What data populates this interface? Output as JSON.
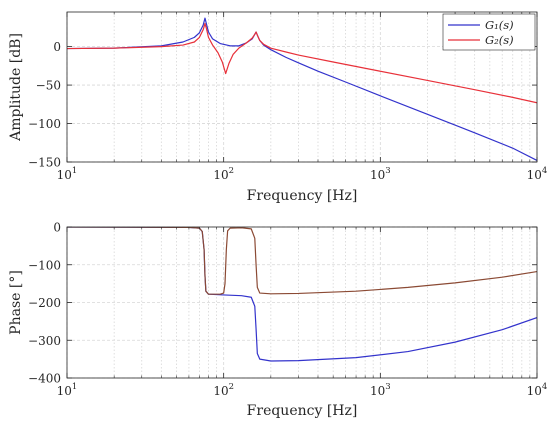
{
  "colors": {
    "g1": "#3333cc",
    "g2": "#e8313a",
    "overlap": "#8b4a34",
    "grid": "#d7d7d7",
    "axis": "#262626"
  },
  "legend": {
    "placement": "top-right",
    "entries": [
      {
        "series": "g1",
        "text": "G₁(s)"
      },
      {
        "series": "g2",
        "text": "G₂(s)"
      }
    ]
  },
  "chart_data": [
    {
      "type": "line",
      "xscale": "log",
      "xlim": [
        10,
        10000
      ],
      "ylim": [
        -150,
        45
      ],
      "grid": true,
      "xlabel": "Frequency [Hz]",
      "ylabel": "Amplitude [dB]",
      "xticks": [
        {
          "value": 10,
          "label_base": "10",
          "label_exp": "1"
        },
        {
          "value": 100,
          "label_base": "10",
          "label_exp": "2"
        },
        {
          "value": 1000,
          "label_base": "10",
          "label_exp": "3"
        },
        {
          "value": 10000,
          "label_base": "10",
          "label_exp": "4"
        }
      ],
      "yticks": [
        {
          "value": 0,
          "label": "0"
        },
        {
          "value": -50,
          "label": "−50"
        },
        {
          "value": -100,
          "label": "−100"
        },
        {
          "value": -150,
          "label": "−150"
        }
      ],
      "series": [
        {
          "key": "g1",
          "name": "G₁(s)",
          "points": [
            [
              10,
              -2.5
            ],
            [
              20,
              -2
            ],
            [
              40,
              1
            ],
            [
              55,
              6
            ],
            [
              65,
              12
            ],
            [
              70,
              18
            ],
            [
              74,
              28
            ],
            [
              76,
              37
            ],
            [
              77.5,
              30
            ],
            [
              80,
              19
            ],
            [
              85,
              10
            ],
            [
              95,
              4
            ],
            [
              110,
              1
            ],
            [
              125,
              1
            ],
            [
              140,
              5
            ],
            [
              152,
              10
            ],
            [
              158,
              16
            ],
            [
              161,
              19
            ],
            [
              164,
              15
            ],
            [
              170,
              8
            ],
            [
              180,
              2
            ],
            [
              200,
              -4
            ],
            [
              250,
              -14
            ],
            [
              300,
              -21
            ],
            [
              400,
              -32
            ],
            [
              600,
              -46
            ],
            [
              1000,
              -64
            ],
            [
              2000,
              -88
            ],
            [
              4000,
              -112
            ],
            [
              7000,
              -132
            ],
            [
              10000,
              -148
            ]
          ]
        },
        {
          "key": "g2",
          "name": "G₂(s)",
          "points": [
            [
              10,
              -2.5
            ],
            [
              20,
              -2
            ],
            [
              40,
              0
            ],
            [
              55,
              2
            ],
            [
              65,
              6
            ],
            [
              70,
              12
            ],
            [
              74,
              22
            ],
            [
              76,
              30
            ],
            [
              77.5,
              24
            ],
            [
              80,
              12
            ],
            [
              85,
              2
            ],
            [
              92,
              -8
            ],
            [
              98,
              -20
            ],
            [
              103,
              -35
            ],
            [
              108,
              -22
            ],
            [
              115,
              -10
            ],
            [
              125,
              -2
            ],
            [
              140,
              5
            ],
            [
              152,
              11
            ],
            [
              158,
              16
            ],
            [
              161,
              19
            ],
            [
              164,
              15
            ],
            [
              170,
              8
            ],
            [
              180,
              3
            ],
            [
              200,
              -2
            ],
            [
              250,
              -7
            ],
            [
              300,
              -11
            ],
            [
              500,
              -20
            ],
            [
              1000,
              -32
            ],
            [
              2000,
              -44
            ],
            [
              4000,
              -56
            ],
            [
              7000,
              -66
            ],
            [
              10000,
              -73
            ]
          ]
        }
      ]
    },
    {
      "type": "line",
      "xscale": "log",
      "xlim": [
        10,
        10000
      ],
      "ylim": [
        -400,
        0
      ],
      "grid": true,
      "xlabel": "Frequency [Hz]",
      "ylabel": "Phase [°]",
      "xticks": [
        {
          "value": 10,
          "label_base": "10",
          "label_exp": "1"
        },
        {
          "value": 100,
          "label_base": "10",
          "label_exp": "2"
        },
        {
          "value": 1000,
          "label_base": "10",
          "label_exp": "3"
        },
        {
          "value": 10000,
          "label_base": "10",
          "label_exp": "4"
        }
      ],
      "yticks": [
        {
          "value": 0,
          "label": "0"
        },
        {
          "value": -100,
          "label": "−100"
        },
        {
          "value": -200,
          "label": "−200"
        },
        {
          "value": -300,
          "label": "−300"
        },
        {
          "value": -400,
          "label": "−400"
        }
      ],
      "series": [
        {
          "key": "g1",
          "name": "G₁(s)",
          "points": [
            [
              10,
              0
            ],
            [
              60,
              -1
            ],
            [
              70,
              -3
            ],
            [
              73,
              -12
            ],
            [
              75,
              -60
            ],
            [
              76,
              -130
            ],
            [
              77,
              -170
            ],
            [
              80,
              -178
            ],
            [
              100,
              -180
            ],
            [
              130,
              -182
            ],
            [
              150,
              -186
            ],
            [
              158,
              -210
            ],
            [
              161,
              -270
            ],
            [
              164,
              -335
            ],
            [
              170,
              -350
            ],
            [
              200,
              -355
            ],
            [
              300,
              -354
            ],
            [
              700,
              -346
            ],
            [
              1500,
              -330
            ],
            [
              3000,
              -305
            ],
            [
              6000,
              -272
            ],
            [
              10000,
              -240
            ]
          ]
        },
        {
          "key": "g2",
          "name": "G₂(s)",
          "color_key": "overlap",
          "points": [
            [
              10,
              0
            ],
            [
              60,
              -1
            ],
            [
              70,
              -3
            ],
            [
              73,
              -12
            ],
            [
              75,
              -60
            ],
            [
              76,
              -130
            ],
            [
              77,
              -170
            ],
            [
              80,
              -178
            ],
            [
              95,
              -178
            ],
            [
              100,
              -175
            ],
            [
              102,
              -150
            ],
            [
              104,
              -60
            ],
            [
              106,
              -10
            ],
            [
              110,
              -3
            ],
            [
              130,
              -2
            ],
            [
              150,
              -5
            ],
            [
              158,
              -30
            ],
            [
              161,
              -100
            ],
            [
              164,
              -160
            ],
            [
              170,
              -175
            ],
            [
              200,
              -177
            ],
            [
              300,
              -176
            ],
            [
              700,
              -170
            ],
            [
              1500,
              -160
            ],
            [
              3000,
              -148
            ],
            [
              6000,
              -133
            ],
            [
              10000,
              -118
            ]
          ]
        }
      ]
    }
  ]
}
